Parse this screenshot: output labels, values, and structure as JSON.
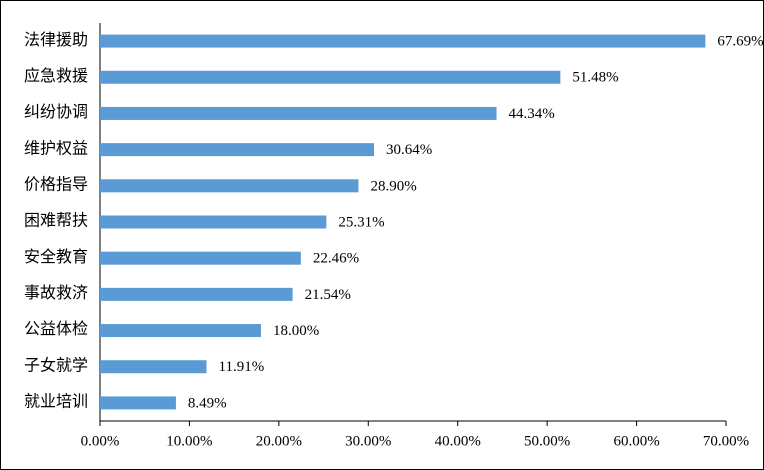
{
  "chart_data": {
    "type": "bar",
    "orientation": "horizontal",
    "categories": [
      "法律援助",
      "应急救援",
      "纠纷协调",
      "维护权益",
      "价格指导",
      "困难帮扶",
      "安全教育",
      "事故救济",
      "公益体检",
      "子女就学",
      "就业培训"
    ],
    "values": [
      67.69,
      51.48,
      44.34,
      30.64,
      28.9,
      25.31,
      22.46,
      21.54,
      18.0,
      11.91,
      8.49
    ],
    "value_labels": [
      "67.69%",
      "51.48%",
      "44.34%",
      "30.64%",
      "28.90%",
      "25.31%",
      "22.46%",
      "21.54%",
      "18.00%",
      "11.91%",
      "8.49%"
    ],
    "color": "#5b9bd5",
    "xlim": [
      0,
      70
    ],
    "xticks": [
      {
        "value": 0,
        "label": "0.00%"
      },
      {
        "value": 10,
        "label": "10.00%"
      },
      {
        "value": 20,
        "label": "20.00%"
      },
      {
        "value": 30,
        "label": "30.00%"
      },
      {
        "value": 40,
        "label": "40.00%"
      },
      {
        "value": 50,
        "label": "50.00%"
      },
      {
        "value": 60,
        "label": "60.00%"
      },
      {
        "value": 70,
        "label": "70.00%"
      }
    ],
    "grid": false
  }
}
